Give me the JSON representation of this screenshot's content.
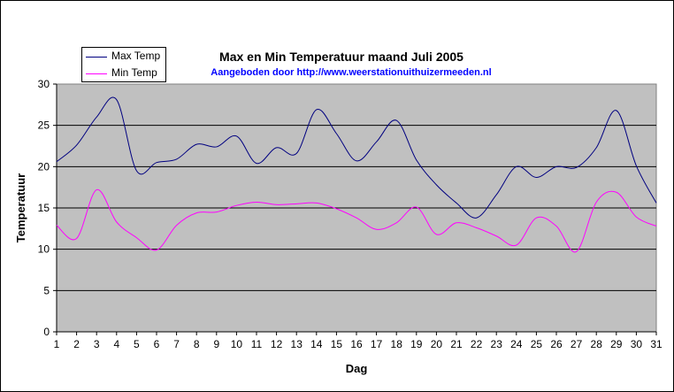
{
  "chart_data": {
    "type": "line",
    "title": "Max en Min Temperatuur maand Juli 2005",
    "subtitle": "Aangeboden door http://www.weerstationuithuizermeeden.nl",
    "xlabel": "Dag",
    "ylabel": "Temperatuur",
    "x": [
      1,
      2,
      3,
      4,
      5,
      6,
      7,
      8,
      9,
      10,
      11,
      12,
      13,
      14,
      15,
      16,
      17,
      18,
      19,
      20,
      21,
      22,
      23,
      24,
      25,
      26,
      27,
      28,
      29,
      30,
      31
    ],
    "ylim": [
      0,
      30
    ],
    "yticks": [
      0,
      5,
      10,
      15,
      20,
      25,
      30
    ],
    "grid": true,
    "legend_position": "top-left",
    "plot_background": "#c0c0c0",
    "series": [
      {
        "name": "Max Temp",
        "color": "#000080",
        "values": [
          20.6,
          22.6,
          26.0,
          28.1,
          19.5,
          20.5,
          20.9,
          22.7,
          22.4,
          23.7,
          20.4,
          22.3,
          21.6,
          26.9,
          24.0,
          20.7,
          23.0,
          25.6,
          20.8,
          17.8,
          15.6,
          13.8,
          16.6,
          20.0,
          18.7,
          20.0,
          19.9,
          22.3,
          26.8,
          20.1,
          15.6
        ]
      },
      {
        "name": "Min Temp",
        "color": "#ff00ff",
        "values": [
          12.9,
          11.3,
          17.2,
          13.3,
          11.4,
          9.9,
          12.9,
          14.4,
          14.5,
          15.3,
          15.7,
          15.4,
          15.5,
          15.6,
          14.9,
          13.8,
          12.4,
          13.2,
          15.1,
          11.8,
          13.2,
          12.6,
          11.6,
          10.5,
          13.8,
          12.8,
          9.7,
          15.7,
          16.9,
          13.9,
          12.8
        ]
      }
    ]
  }
}
